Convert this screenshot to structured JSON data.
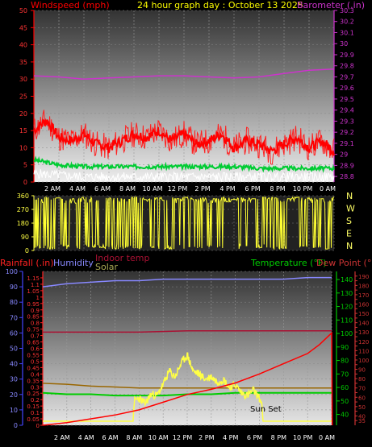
{
  "header": {
    "left_label": "Windspeed (mph)",
    "center_label": "24 hour graph day : October 13 2025",
    "right_label": "Barometer (.in)"
  },
  "middle": {
    "compass": [
      "N",
      "W",
      "S",
      "E",
      "N"
    ]
  },
  "bottom_labels": {
    "rainfall": "Rainfall (.in)",
    "humidity": "Humidity",
    "indoor": "Indoor temp",
    "solar": "Solar",
    "temperature": "Temperature (°F)",
    "dewpoint": "Dew Point (°F)",
    "sunset": "Sun Set"
  },
  "colors": {
    "wind": "#ff0000",
    "gust": "#ff2020",
    "avg_green": "#00cc33",
    "barometer": "#cc33cc",
    "direction": "#ffff33",
    "humidity": "#8888ff",
    "rain": "#ff0000",
    "solar": "#ffff44",
    "temperature": "#00cc00",
    "dewpoint": "#cc3333",
    "indoor": "#aa1133"
  },
  "chart_data": [
    {
      "type": "line",
      "title": "24 hour graph day : October 13 2025",
      "xlabel": "",
      "x_ticks": [
        "2 AM",
        "4 AM",
        "6 AM",
        "8 AM",
        "10 AM",
        "12 PM",
        "2 PM",
        "4 PM",
        "6 PM",
        "8 PM",
        "10 PM",
        "0 AM"
      ],
      "y_left": {
        "label": "Windspeed (mph)",
        "ticks": [
          0,
          5,
          10,
          15,
          20,
          25,
          30,
          35,
          40,
          45,
          50
        ],
        "ylim": [
          0,
          50
        ]
      },
      "y_right": {
        "label": "Barometer (.in)",
        "ticks": [
          28.8,
          28.9,
          29,
          29.1,
          29.2,
          29.3,
          29.4,
          29.5,
          29.6,
          29.7,
          29.8,
          29.9,
          30,
          30.1,
          30.2,
          30.3
        ],
        "ylim": [
          28.75,
          30.3
        ]
      },
      "series": [
        {
          "name": "Barometer (.in)",
          "axis": "right",
          "x_hours": [
            0,
            2,
            4,
            6,
            8,
            10,
            12,
            14,
            16,
            18,
            20,
            22,
            24
          ],
          "values": [
            29.71,
            29.7,
            29.68,
            29.69,
            29.7,
            29.71,
            29.71,
            29.7,
            29.69,
            29.7,
            29.73,
            29.76,
            29.77
          ]
        },
        {
          "name": "Gust",
          "axis": "left",
          "x_hours": [
            0,
            1,
            2,
            3,
            4,
            5,
            6,
            7,
            8,
            9,
            10,
            11,
            12,
            13,
            14,
            15,
            16,
            17,
            18,
            19,
            20,
            21,
            22,
            23,
            24
          ],
          "values": [
            15,
            18,
            13,
            12,
            14,
            11,
            10,
            12,
            14,
            13,
            15,
            12,
            14,
            11,
            12,
            14,
            10,
            12,
            11,
            9,
            11,
            13,
            10,
            12,
            9
          ]
        },
        {
          "name": "Wind average",
          "axis": "left",
          "x_hours": [
            0,
            2,
            4,
            6,
            8,
            10,
            12,
            14,
            16,
            18,
            20,
            22,
            24
          ],
          "values": [
            6.5,
            5,
            4.5,
            4.5,
            4.5,
            4.5,
            4.5,
            4.5,
            4.5,
            4,
            4,
            4,
            4
          ]
        },
        {
          "name": "Wind",
          "axis": "left",
          "x_hours": [
            0,
            2,
            4,
            6,
            8,
            10,
            12,
            14,
            16,
            18,
            20,
            22,
            24
          ],
          "values": [
            2.5,
            2,
            1.5,
            1.5,
            1.5,
            1.5,
            1.5,
            1.5,
            1.5,
            1.5,
            1.5,
            1.5,
            1.5
          ]
        }
      ]
    },
    {
      "type": "scatter",
      "title": "",
      "x_ticks": [],
      "y_left": {
        "label": "",
        "ticks": [
          0,
          90,
          180,
          270,
          360
        ],
        "ylim": [
          0,
          360
        ]
      },
      "series": [
        {
          "name": "",
          "x_hours": [
            0,
            0.5,
            1,
            1.5,
            2,
            2.5,
            3,
            3.5,
            4,
            4.5,
            5,
            5.5,
            6,
            6.5,
            7,
            7.5,
            8,
            8.5,
            9,
            9.5,
            10,
            10.5,
            11,
            11.5,
            12,
            12.5,
            13,
            13.5,
            14,
            14.5,
            15,
            15.5,
            16,
            16.5,
            17,
            17.5,
            18,
            18.5,
            19,
            19.5,
            20,
            20.5,
            21,
            21.5,
            22,
            22.5,
            23,
            23.5,
            24
          ],
          "values": [
            20,
            40,
            350,
            10,
            345,
            30,
            340,
            15,
            350,
            25,
            330,
            20,
            345,
            10,
            340,
            30,
            350,
            15,
            335,
            20,
            345,
            330,
            10,
            340,
            350,
            25,
            335,
            345,
            330,
            340,
            350,
            320,
            335,
            345,
            330,
            340,
            20,
            350,
            335,
            345,
            15,
            340,
            350,
            30,
            345,
            20,
            340,
            10,
            350
          ]
        }
      ]
    },
    {
      "type": "line",
      "title": "",
      "x_ticks": [
        "2 AM",
        "4 AM",
        "6 AM",
        "8 AM",
        "10 AM",
        "12 PM",
        "2 PM",
        "4 PM",
        "6 PM",
        "8 PM",
        "10 PM",
        "0 AM"
      ],
      "y_left": {
        "label": "Humidity",
        "ticks": [
          0,
          10,
          20,
          30,
          40,
          50,
          60,
          70,
          80,
          90,
          100
        ],
        "ylim": [
          0,
          100
        ]
      },
      "y_rain": {
        "label": "Rainfall (.in)",
        "ticks": [
          0,
          0.05,
          0.1,
          0.15,
          0.2,
          0.25,
          0.3,
          0.35,
          0.4,
          0.45,
          0.5,
          0.55,
          0.6,
          0.65,
          0.7,
          0.75,
          0.8,
          0.85,
          0.9,
          0.95,
          1,
          1.05,
          1.1,
          1.15
        ],
        "ylim": [
          0,
          1.2
        ]
      },
      "y_right": {
        "label": "Temperature (°F)",
        "ticks": [
          40,
          50,
          60,
          70,
          80,
          90,
          100,
          110,
          120,
          130,
          140
        ],
        "ylim": [
          32,
          146
        ]
      },
      "y_right2": {
        "label": "Dew Point (°F)",
        "ticks": [
          35,
          40,
          45,
          50,
          55,
          60,
          65,
          70,
          75,
          80,
          85,
          90,
          95,
          100,
          105,
          110,
          115,
          120,
          125,
          130,
          135,
          140,
          145,
          150,
          155,
          160,
          165,
          170,
          175,
          180,
          185,
          190
        ],
        "ylim": [
          30,
          195
        ]
      },
      "series": [
        {
          "name": "Humidity",
          "axis": "left",
          "x_hours": [
            0,
            2,
            4,
            6,
            8,
            10,
            12,
            14,
            16,
            18,
            20,
            22,
            24
          ],
          "values": [
            90,
            92,
            93,
            94,
            94,
            95,
            95,
            95,
            95,
            95,
            95,
            96,
            96
          ]
        },
        {
          "name": "Rainfall (.in)",
          "axis": "rain",
          "x_hours": [
            0,
            2,
            4,
            6,
            8,
            10,
            12,
            14,
            16,
            18,
            20,
            22,
            23,
            24,
            24.05
          ],
          "values": [
            0,
            0.02,
            0.05,
            0.08,
            0.12,
            0.18,
            0.24,
            0.28,
            0.33,
            0.4,
            0.48,
            0.56,
            0.63,
            0.72,
            0
          ]
        },
        {
          "name": "Indoor temp",
          "axis": "right",
          "x_hours": [
            0,
            4,
            8,
            12,
            16,
            20,
            24
          ],
          "values": [
            101,
            101,
            101,
            102,
            102,
            102,
            102
          ]
        },
        {
          "name": "Temperature (°F)",
          "axis": "right",
          "x_hours": [
            0,
            2,
            4,
            6,
            8,
            10,
            12,
            14,
            16,
            18,
            20,
            22,
            24
          ],
          "values": [
            56,
            55,
            55,
            54,
            54,
            54,
            55,
            55,
            56,
            56,
            56,
            56,
            56
          ]
        },
        {
          "name": "Dew Point (°F)",
          "axis": "right2",
          "x_hours": [
            0,
            2,
            4,
            6,
            8,
            10,
            12,
            14,
            16,
            18,
            20,
            22,
            24
          ],
          "values": [
            75,
            74,
            72,
            71,
            70,
            70,
            70,
            70,
            70,
            70,
            70,
            70,
            70
          ]
        },
        {
          "name": "Solar",
          "axis": "right",
          "x_hours": [
            0,
            7.5,
            7.6,
            8,
            8.5,
            9,
            9.5,
            10,
            10.5,
            11,
            11.5,
            12,
            12.5,
            13,
            13.5,
            14,
            14.5,
            15,
            15.5,
            16,
            16.5,
            17,
            17.5,
            18,
            18.2,
            18.3,
            24
          ],
          "values": [
            35,
            35,
            50,
            52,
            48,
            55,
            54,
            62,
            72,
            68,
            78,
            84,
            72,
            70,
            66,
            68,
            64,
            66,
            60,
            62,
            56,
            54,
            58,
            52,
            48,
            35,
            35
          ]
        }
      ]
    }
  ]
}
